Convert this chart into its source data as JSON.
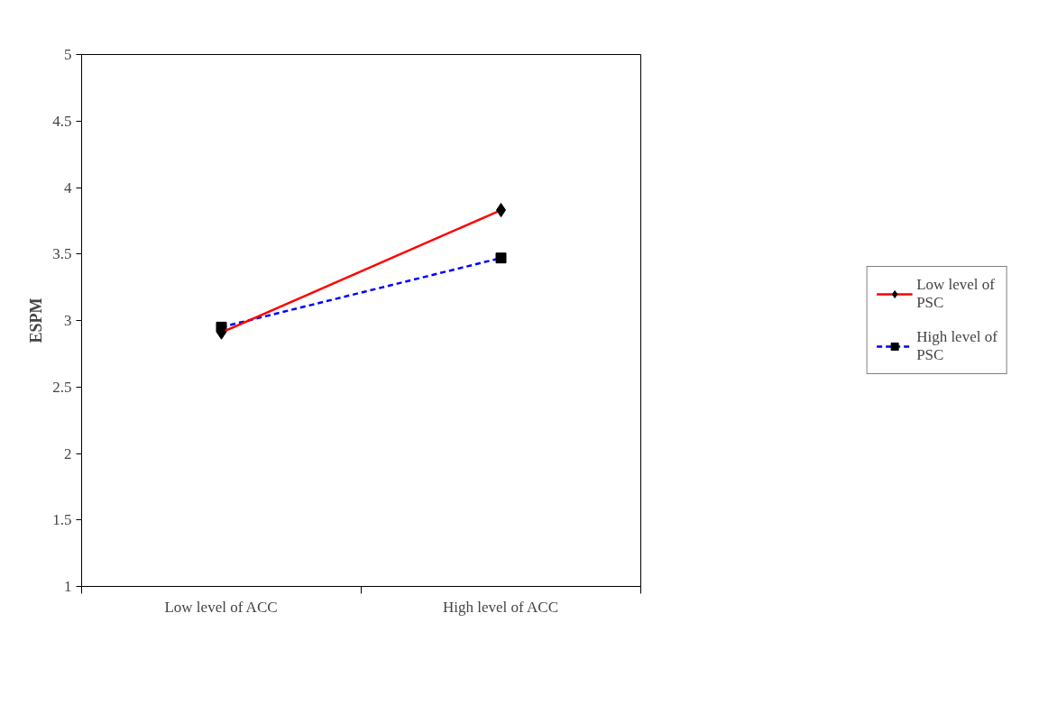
{
  "chart_data": {
    "type": "line",
    "ylabel": "ESPM",
    "categories": [
      "Low level of ACC",
      "High level of ACC"
    ],
    "series": [
      {
        "name": "Low level of PSC",
        "color": "#ff0000",
        "values": [
          2.91,
          3.83
        ],
        "marker": "diamond",
        "line_style": "solid"
      },
      {
        "name": "High level of PSC",
        "color": "#0000ff",
        "values": [
          2.95,
          3.47
        ],
        "marker": "square",
        "line_style": "dashed"
      }
    ],
    "ylim": [
      1,
      5
    ],
    "yticks": [
      1,
      1.5,
      2,
      2.5,
      3,
      3.5,
      4,
      4.5,
      5
    ],
    "grid": false,
    "legend": "right"
  }
}
